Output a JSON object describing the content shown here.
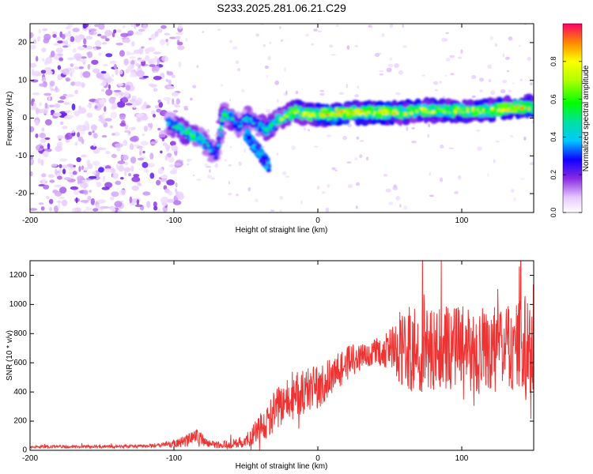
{
  "chart_data": [
    {
      "type": "heatmap",
      "title": "S233.2025.281.06.21.C29",
      "xlabel": "Height of straight line (km)",
      "ylabel": "Frequency (Hz)",
      "xlim": [
        -200,
        150
      ],
      "ylim": [
        -25,
        25
      ],
      "x_ticks": [
        -200,
        -100,
        0,
        100
      ],
      "x_tick_labels": [
        "-200",
        "-100",
        "0",
        "100"
      ],
      "y_ticks": [
        -20,
        -10,
        0,
        10,
        20
      ],
      "y_tick_labels": [
        "-20",
        "-10",
        "0",
        "10",
        "20"
      ],
      "colorbar": {
        "label": "Normalized spectral amplitude",
        "range": [
          0,
          1
        ],
        "ticks": [
          0.0,
          0.2,
          0.4,
          0.6,
          0.8
        ],
        "tick_labels": [
          "0.0",
          "0.2",
          "0.4",
          "0.6",
          "0.8"
        ]
      },
      "ridge": {
        "x": [
          -105,
          -100,
          -95,
          -90,
          -85,
          -80,
          -75,
          -70,
          -66,
          -60,
          -55,
          -50,
          -45,
          -40,
          -35,
          -30,
          -25,
          -20,
          -15,
          -10,
          -5,
          0,
          10,
          20,
          30,
          40,
          50,
          60,
          70,
          80,
          90,
          100,
          110,
          120,
          130,
          140,
          150
        ],
        "y": [
          -1,
          -2,
          -3,
          -4,
          -5,
          -6,
          -8,
          -10,
          1,
          0,
          -2,
          0,
          -1,
          -2,
          -3,
          -1,
          0,
          1,
          2,
          1,
          1,
          1,
          1,
          1.5,
          1.5,
          1.5,
          1.5,
          1.5,
          2,
          2,
          2,
          2,
          2,
          2,
          2.5,
          3,
          3
        ],
        "amplitude": [
          0.35,
          0.45,
          0.5,
          0.55,
          0.5,
          0.45,
          0.4,
          0.3,
          0.5,
          0.45,
          0.4,
          0.4,
          0.35,
          0.45,
          0.5,
          0.55,
          0.6,
          0.65,
          0.7,
          0.72,
          0.7,
          0.75,
          0.8,
          0.78,
          0.75,
          0.72,
          0.75,
          0.7,
          0.68,
          0.7,
          0.65,
          0.7,
          0.68,
          0.7,
          0.75,
          0.8,
          0.72
        ]
      },
      "scatter_noise_region": [
        -200,
        -95
      ]
    },
    {
      "type": "line",
      "xlabel": "Height of straight line (km)",
      "ylabel": "SNR (10 * v/v)",
      "xlim": [
        -200,
        150
      ],
      "ylim": [
        0,
        1300
      ],
      "x_ticks": [
        -200,
        -100,
        0,
        100
      ],
      "x_tick_labels": [
        "-200",
        "-100",
        "0",
        "100"
      ],
      "y_ticks": [
        0,
        200,
        400,
        600,
        800,
        1000,
        1200
      ],
      "y_tick_labels": [
        "0",
        "200",
        "400",
        "600",
        "800",
        "1000",
        "1200"
      ],
      "series": [
        {
          "name": "SNR",
          "color": "#ee3333",
          "x": [
            -200,
            -180,
            -160,
            -140,
            -120,
            -110,
            -100,
            -90,
            -85,
            -80,
            -75,
            -70,
            -60,
            -50,
            -45,
            -40,
            -35,
            -30,
            -25,
            -20,
            -15,
            -10,
            -5,
            0,
            5,
            10,
            15,
            20,
            25,
            30,
            35,
            40,
            45,
            50,
            55,
            60,
            65,
            70,
            75,
            80,
            85,
            90,
            95,
            100,
            105,
            110,
            115,
            120,
            125,
            130,
            135,
            140,
            145,
            150
          ],
          "values": [
            25,
            25,
            25,
            25,
            30,
            35,
            45,
            70,
            110,
            70,
            45,
            40,
            40,
            60,
            110,
            150,
            200,
            270,
            310,
            340,
            380,
            400,
            420,
            440,
            470,
            510,
            550,
            590,
            620,
            650,
            660,
            680,
            670,
            690,
            670,
            700,
            680,
            700,
            690,
            680,
            700,
            690,
            680,
            700,
            690,
            690,
            680,
            690,
            700,
            680,
            690,
            700,
            680,
            700
          ],
          "spread": [
            10,
            10,
            10,
            10,
            12,
            15,
            25,
            40,
            50,
            40,
            25,
            25,
            30,
            50,
            70,
            100,
            120,
            140,
            150,
            150,
            160,
            150,
            150,
            150,
            150,
            140,
            130,
            120,
            110,
            100,
            90,
            80,
            100,
            150,
            200,
            260,
            280,
            300,
            300,
            300,
            300,
            300,
            300,
            300,
            300,
            300,
            300,
            300,
            300,
            300,
            320,
            350,
            380,
            300
          ]
        }
      ]
    }
  ]
}
